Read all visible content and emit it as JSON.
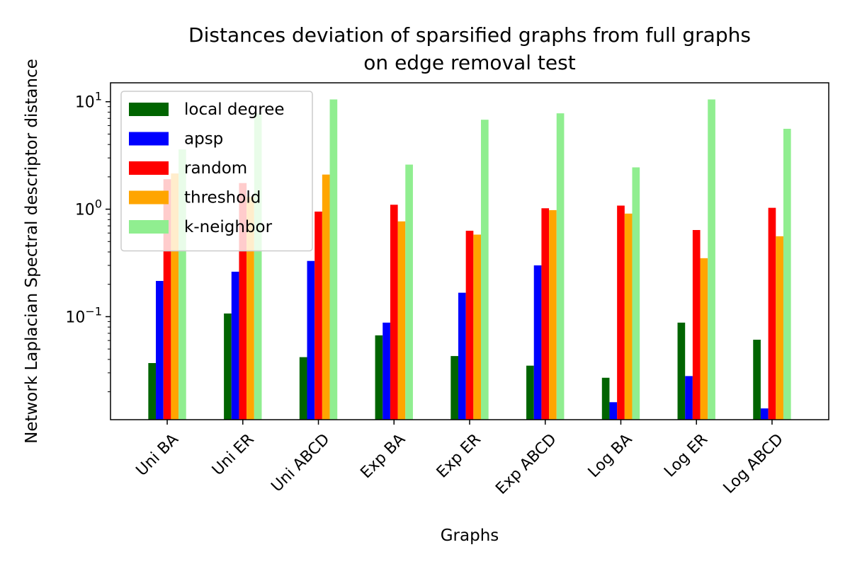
{
  "chart_data": {
    "type": "bar",
    "title_line1": "Distances deviation of sparsified graphs from full graphs",
    "title_line2": "on edge removal test",
    "xlabel": "Graphs",
    "ylabel": "Network Laplacian Spectral descriptor distance",
    "yscale": "log",
    "ylim": [
      0.011,
      15
    ],
    "yticks": [
      {
        "value": 0.1,
        "base": "10",
        "exp": "−1"
      },
      {
        "value": 1,
        "base": "10",
        "exp": "0"
      },
      {
        "value": 10,
        "base": "10",
        "exp": "1"
      }
    ],
    "categories": [
      "Uni BA",
      "Uni ER",
      "Uni ABCD",
      "Exp BA",
      "Exp ER",
      "Exp ABCD",
      "Log BA",
      "Log ER",
      "Log ABCD"
    ],
    "legend_position": "upper left",
    "grid": false,
    "series": [
      {
        "name": "local degree",
        "color": "#006400",
        "values": [
          0.037,
          0.107,
          0.042,
          0.067,
          0.043,
          0.035,
          0.027,
          0.088,
          0.061
        ]
      },
      {
        "name": "apsp",
        "color": "#0000ff",
        "values": [
          0.215,
          0.262,
          0.33,
          0.088,
          0.167,
          0.3,
          0.016,
          0.028,
          0.014
        ]
      },
      {
        "name": "random",
        "color": "#ff0000",
        "values": [
          1.9,
          1.75,
          0.95,
          1.1,
          0.63,
          1.02,
          1.08,
          0.64,
          1.03
        ]
      },
      {
        "name": "threshold",
        "color": "#ffa500",
        "values": [
          2.15,
          1.3,
          2.1,
          0.77,
          0.58,
          0.98,
          0.91,
          0.35,
          0.56
        ]
      },
      {
        "name": "k-neighbor",
        "color": "#90ee90",
        "values": [
          3.6,
          7.8,
          10.5,
          2.6,
          6.8,
          7.8,
          2.45,
          10.5,
          5.6
        ]
      }
    ]
  }
}
